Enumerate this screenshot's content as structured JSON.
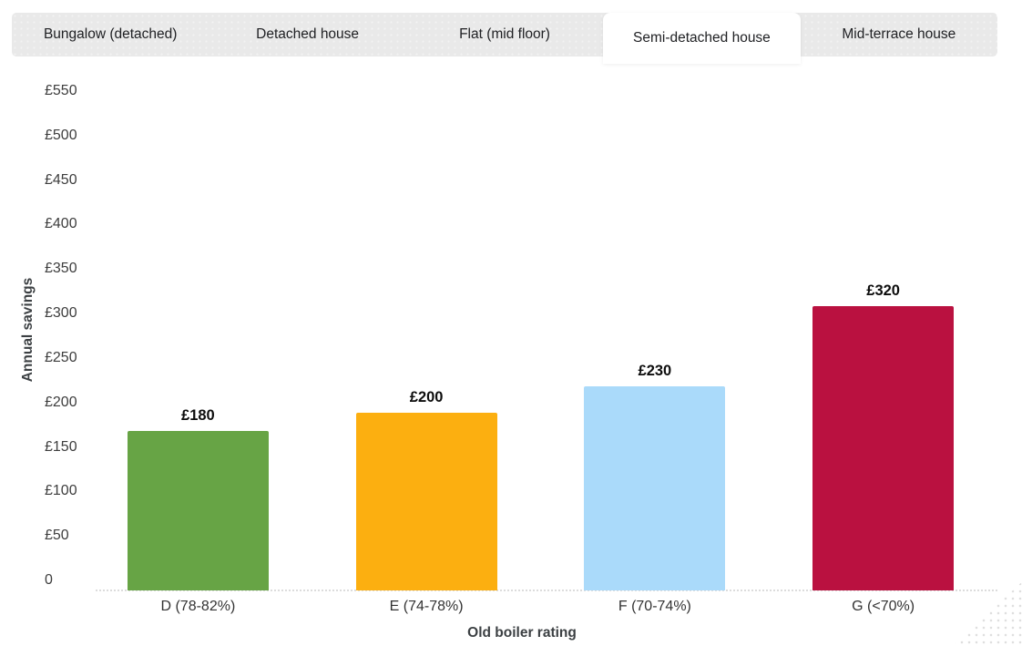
{
  "tabs": {
    "items": [
      {
        "label": "Bungalow (detached)",
        "active": false
      },
      {
        "label": "Detached house",
        "active": false
      },
      {
        "label": "Flat (mid floor)",
        "active": false
      },
      {
        "label": "Semi-detached house",
        "active": true
      },
      {
        "label": "Mid-terrace house",
        "active": false
      }
    ]
  },
  "chart_data": {
    "type": "bar",
    "title": "",
    "categories": [
      "D (78-82%)",
      "E (74-78%)",
      "F (70-74%)",
      "G (<70%)"
    ],
    "values": [
      180,
      200,
      230,
      320
    ],
    "value_labels": [
      "£180",
      "£200",
      "£230",
      "£320"
    ],
    "bar_colors": [
      "#67a445",
      "#fcaf10",
      "#aadafa",
      "#ba1140"
    ],
    "xlabel": "Old boiler rating",
    "ylabel": "Annual savings",
    "ylim": [
      0,
      550
    ],
    "ytick_step": 50,
    "ytick_values": [
      550,
      500,
      450,
      400,
      350,
      300,
      250,
      200,
      150,
      100,
      50,
      0
    ],
    "ytick_labels": [
      "£550",
      "£500",
      "£450",
      "£400",
      "£350",
      "£300",
      "£250",
      "£200",
      "£150",
      "£100",
      "£50",
      "0"
    ],
    "grid": false,
    "legend": false
  },
  "colors": {
    "tabbar_background": "#e9e9e9",
    "active_tab_background": "#ffffff",
    "tab_text": "#202124",
    "tick_text": "#3d3d3d",
    "value_label_text": "#0d0d0d",
    "axis_title_text": "#3c4043",
    "axis_line": "#dcdcdc"
  }
}
